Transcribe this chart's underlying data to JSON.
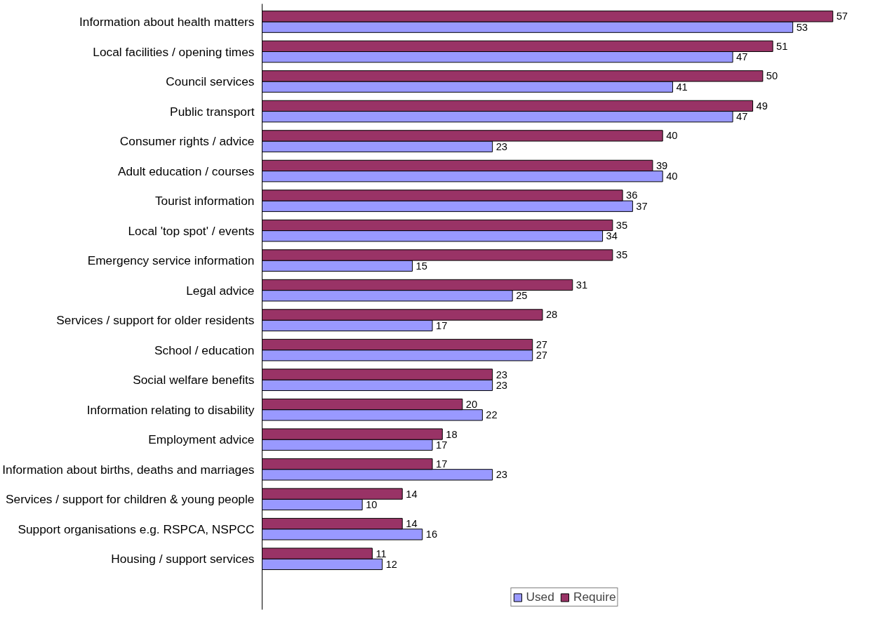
{
  "chart_data": {
    "type": "bar",
    "orientation": "horizontal",
    "categories": [
      "Information about health matters",
      "Local facilities / opening times",
      "Council services",
      "Public transport",
      "Consumer rights / advice",
      "Adult education / courses",
      "Tourist information",
      "Local 'top spot' / events",
      "Emergency service information",
      "Legal advice",
      "Services / support for older residents",
      "School / education",
      "Social welfare benefits",
      "Information relating to disability",
      "Employment advice",
      "Information about births, deaths and marriages",
      "Services / support for children & young people",
      "Support organisations e.g. RSPCA, NSPCC",
      "Housing / support services"
    ],
    "series": [
      {
        "name": "Used",
        "color": "#9999ff",
        "values": [
          53,
          47,
          41,
          47,
          23,
          40,
          37,
          34,
          15,
          25,
          17,
          27,
          23,
          22,
          17,
          23,
          10,
          16,
          12
        ]
      },
      {
        "name": "Require",
        "color": "#993366",
        "values": [
          57,
          51,
          50,
          49,
          40,
          39,
          36,
          35,
          35,
          31,
          28,
          27,
          23,
          20,
          18,
          17,
          14,
          14,
          11
        ]
      }
    ],
    "data_labels": true,
    "legend": "bottom",
    "grid": false
  }
}
